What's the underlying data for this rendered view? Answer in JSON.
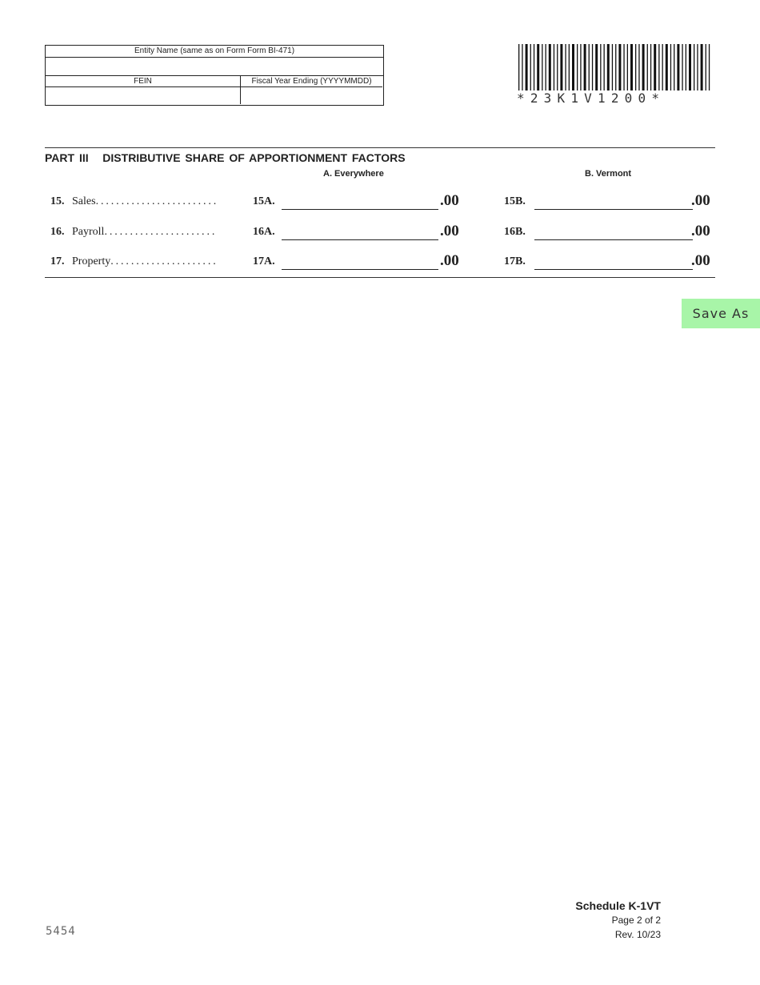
{
  "header": {
    "entity_name_label": "Entity Name (same as on Form Form BI-471)",
    "entity_name_value": "",
    "fein_label": "FEIN",
    "fein_value": "",
    "fiscal_year_label": "Fiscal Year Ending (YYYYMMDD)",
    "fiscal_year_value": ""
  },
  "barcode": {
    "text": "*23K1V1200*"
  },
  "part3": {
    "title": "PART III   DISTRIBUTIVE SHARE OF APPORTIONMENT FACTORS",
    "col_a": "A.  Everywhere",
    "col_b": "B.  Vermont",
    "rows": [
      {
        "num": "15.",
        "label": "Sales",
        "dots": ". . . . . . . . . . . . . . . . . . . . . . . .",
        "a_label": "15A.",
        "a_value": "",
        "b_label": "15B.",
        "b_value": "",
        "cents": ".00"
      },
      {
        "num": "16.",
        "label": "Payroll",
        "dots": ". . . . . . . . . . . . . . . . . . . . . .",
        "a_label": "16A.",
        "a_value": "",
        "b_label": "16B.",
        "b_value": "",
        "cents": ".00"
      },
      {
        "num": "17.",
        "label": "Property",
        "dots": ". . . . . . . . . . . . . . . . . . . . .",
        "a_label": "17A.",
        "a_value": "",
        "b_label": "17B.",
        "b_value": "",
        "cents": ".00"
      }
    ]
  },
  "save_button": {
    "label": "Save As",
    "color": "#a8f5a8"
  },
  "footer": {
    "schedule": "Schedule K-1VT",
    "page": "Page 2 of 2",
    "rev": "Rev. 10/23",
    "form_code": "5454"
  }
}
